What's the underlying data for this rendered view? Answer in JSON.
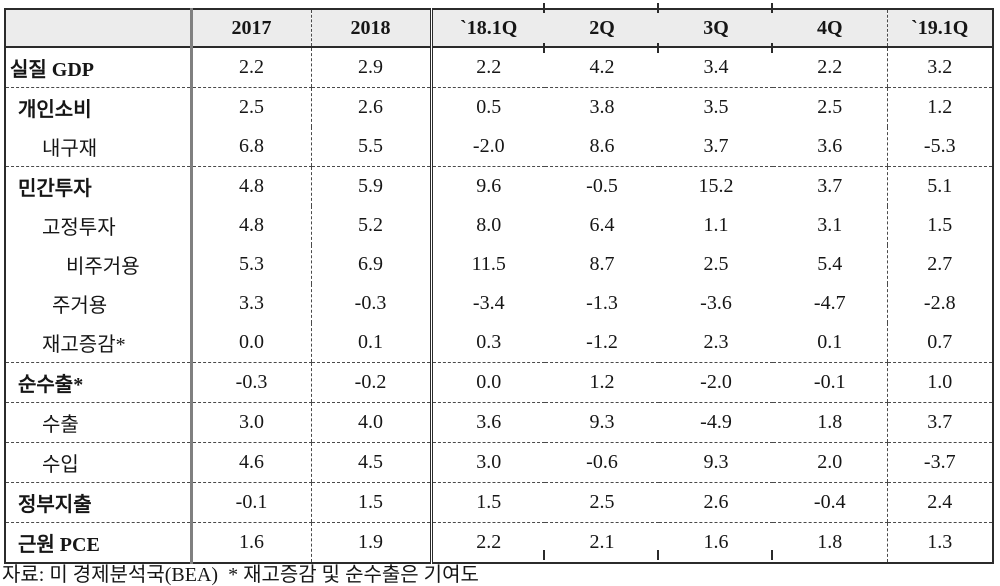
{
  "table": {
    "columns": [
      "",
      "2017",
      "2018",
      "`18.1Q",
      "2Q",
      "3Q",
      "4Q",
      "`19.1Q"
    ],
    "rows": [
      {
        "label": "실질 GDP",
        "indent": 0,
        "bold": true,
        "sep_below": true,
        "values": [
          "2.2",
          "2.9",
          "2.2",
          "4.2",
          "3.4",
          "2.2",
          "3.2"
        ]
      },
      {
        "label": "개인소비",
        "indent": 1,
        "bold": true,
        "sep_below": false,
        "values": [
          "2.5",
          "2.6",
          "0.5",
          "3.8",
          "3.5",
          "2.5",
          "1.2"
        ]
      },
      {
        "label": "내구재",
        "indent": 2,
        "bold": false,
        "sep_below": true,
        "values": [
          "6.8",
          "5.5",
          "-2.0",
          "8.6",
          "3.7",
          "3.6",
          "-5.3"
        ]
      },
      {
        "label": "민간투자",
        "indent": 1,
        "bold": true,
        "sep_below": false,
        "values": [
          "4.8",
          "5.9",
          "9.6",
          "-0.5",
          "15.2",
          "3.7",
          "5.1"
        ]
      },
      {
        "label": "고정투자",
        "indent": 2,
        "bold": false,
        "sep_below": false,
        "values": [
          "4.8",
          "5.2",
          "8.0",
          "6.4",
          "1.1",
          "3.1",
          "1.5"
        ]
      },
      {
        "label": "비주거용",
        "indent": 4,
        "bold": false,
        "sep_below": false,
        "values": [
          "5.3",
          "6.9",
          "11.5",
          "8.7",
          "2.5",
          "5.4",
          "2.7"
        ]
      },
      {
        "label": "주거용",
        "indent": 3,
        "bold": false,
        "sep_below": false,
        "values": [
          "3.3",
          "-0.3",
          "-3.4",
          "-1.3",
          "-3.6",
          "-4.7",
          "-2.8"
        ]
      },
      {
        "label": "재고증감*",
        "indent": 2,
        "bold": false,
        "sep_below": true,
        "values": [
          "0.0",
          "0.1",
          "0.3",
          "-1.2",
          "2.3",
          "0.1",
          "0.7"
        ]
      },
      {
        "label": "순수출*",
        "indent": 1,
        "bold": true,
        "sep_below": true,
        "values": [
          "-0.3",
          "-0.2",
          "0.0",
          "1.2",
          "-2.0",
          "-0.1",
          "1.0"
        ]
      },
      {
        "label": "수출",
        "indent": 2,
        "bold": false,
        "sep_below": true,
        "values": [
          "3.0",
          "4.0",
          "3.6",
          "9.3",
          "-4.9",
          "1.8",
          "3.7"
        ]
      },
      {
        "label": "수입",
        "indent": 2,
        "bold": false,
        "sep_below": true,
        "values": [
          "4.6",
          "4.5",
          "3.0",
          "-0.6",
          "9.3",
          "2.0",
          "-3.7"
        ]
      },
      {
        "label": "정부지출",
        "indent": 1,
        "bold": true,
        "sep_below": true,
        "values": [
          "-0.1",
          "1.5",
          "1.5",
          "2.5",
          "2.6",
          "-0.4",
          "2.4"
        ]
      },
      {
        "label": "근원 PCE",
        "indent": 1,
        "bold": true,
        "sep_below": false,
        "values": [
          "1.6",
          "1.9",
          "2.2",
          "2.1",
          "1.6",
          "1.8",
          "1.3"
        ]
      }
    ]
  },
  "footnote": "자료: 미 경제분석국(BEA)  * 재고증감 및 순수출은 기여도",
  "colors": {
    "header_bg": "#ececec",
    "border_dark": "#2b2b2b",
    "border_gray": "#808080",
    "dash_line": "#4a4a4a",
    "text": "#161616"
  }
}
